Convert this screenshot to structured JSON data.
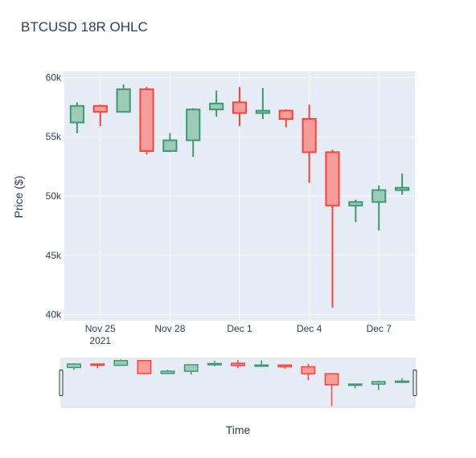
{
  "chart_data": {
    "type": "candlestick",
    "title": "BTCUSD 18R OHLC",
    "xlabel": "Time",
    "ylabel": "Price ($)",
    "ylim": [
      39500,
      60500
    ],
    "y_ticks": [
      40000,
      45000,
      50000,
      55000,
      60000
    ],
    "y_tick_labels": [
      "40k",
      "45k",
      "50k",
      "55k",
      "60k"
    ],
    "x_ticks": [
      {
        "date": "2021-11-25",
        "label": "Nov 25",
        "sublabel": "2021"
      },
      {
        "date": "2021-11-28",
        "label": "Nov 28",
        "sublabel": ""
      },
      {
        "date": "2021-12-01",
        "label": "Dec 1",
        "sublabel": ""
      },
      {
        "date": "2021-12-04",
        "label": "Dec 4",
        "sublabel": ""
      },
      {
        "date": "2021-12-07",
        "label": "Dec 7",
        "sublabel": ""
      }
    ],
    "candles": [
      {
        "date": "2021-11-24",
        "open": 56200,
        "high": 57900,
        "low": 55300,
        "close": 57600
      },
      {
        "date": "2021-11-25",
        "open": 57600,
        "high": 57700,
        "low": 55900,
        "close": 57100
      },
      {
        "date": "2021-11-26",
        "open": 57100,
        "high": 59400,
        "low": 57100,
        "close": 59000
      },
      {
        "date": "2021-11-27",
        "open": 59000,
        "high": 59200,
        "low": 53500,
        "close": 53800
      },
      {
        "date": "2021-11-28",
        "open": 53800,
        "high": 55300,
        "low": 53700,
        "close": 54700
      },
      {
        "date": "2021-11-29",
        "open": 54700,
        "high": 57400,
        "low": 53300,
        "close": 57300
      },
      {
        "date": "2021-11-30",
        "open": 57300,
        "high": 58900,
        "low": 56700,
        "close": 57800
      },
      {
        "date": "2021-12-01",
        "open": 57900,
        "high": 59200,
        "low": 55900,
        "close": 57000
      },
      {
        "date": "2021-12-02",
        "open": 57000,
        "high": 59100,
        "low": 56500,
        "close": 57200
      },
      {
        "date": "2021-12-03",
        "open": 57200,
        "high": 57300,
        "low": 55800,
        "close": 56500
      },
      {
        "date": "2021-12-04",
        "open": 56500,
        "high": 57700,
        "low": 51100,
        "close": 53700
      },
      {
        "date": "2021-12-05",
        "open": 53700,
        "high": 53900,
        "low": 40600,
        "close": 49200
      },
      {
        "date": "2021-12-06",
        "open": 49200,
        "high": 49700,
        "low": 47800,
        "close": 49500
      },
      {
        "date": "2021-12-07",
        "open": 49500,
        "high": 50900,
        "low": 47100,
        "close": 50500
      },
      {
        "date": "2021-12-08",
        "open": 50500,
        "high": 51900,
        "low": 50100,
        "close": 50700
      }
    ],
    "colors": {
      "increasing": "#3d9970",
      "increasing_fill": "#9ecbb7",
      "decreasing": "#ff4136",
      "decreasing_fill": "#f49d9a",
      "plot_bg": "#e5ecf6",
      "grid": "#ffffff",
      "text": "#2a3f5f"
    },
    "rangeslider": true,
    "grid": true
  }
}
